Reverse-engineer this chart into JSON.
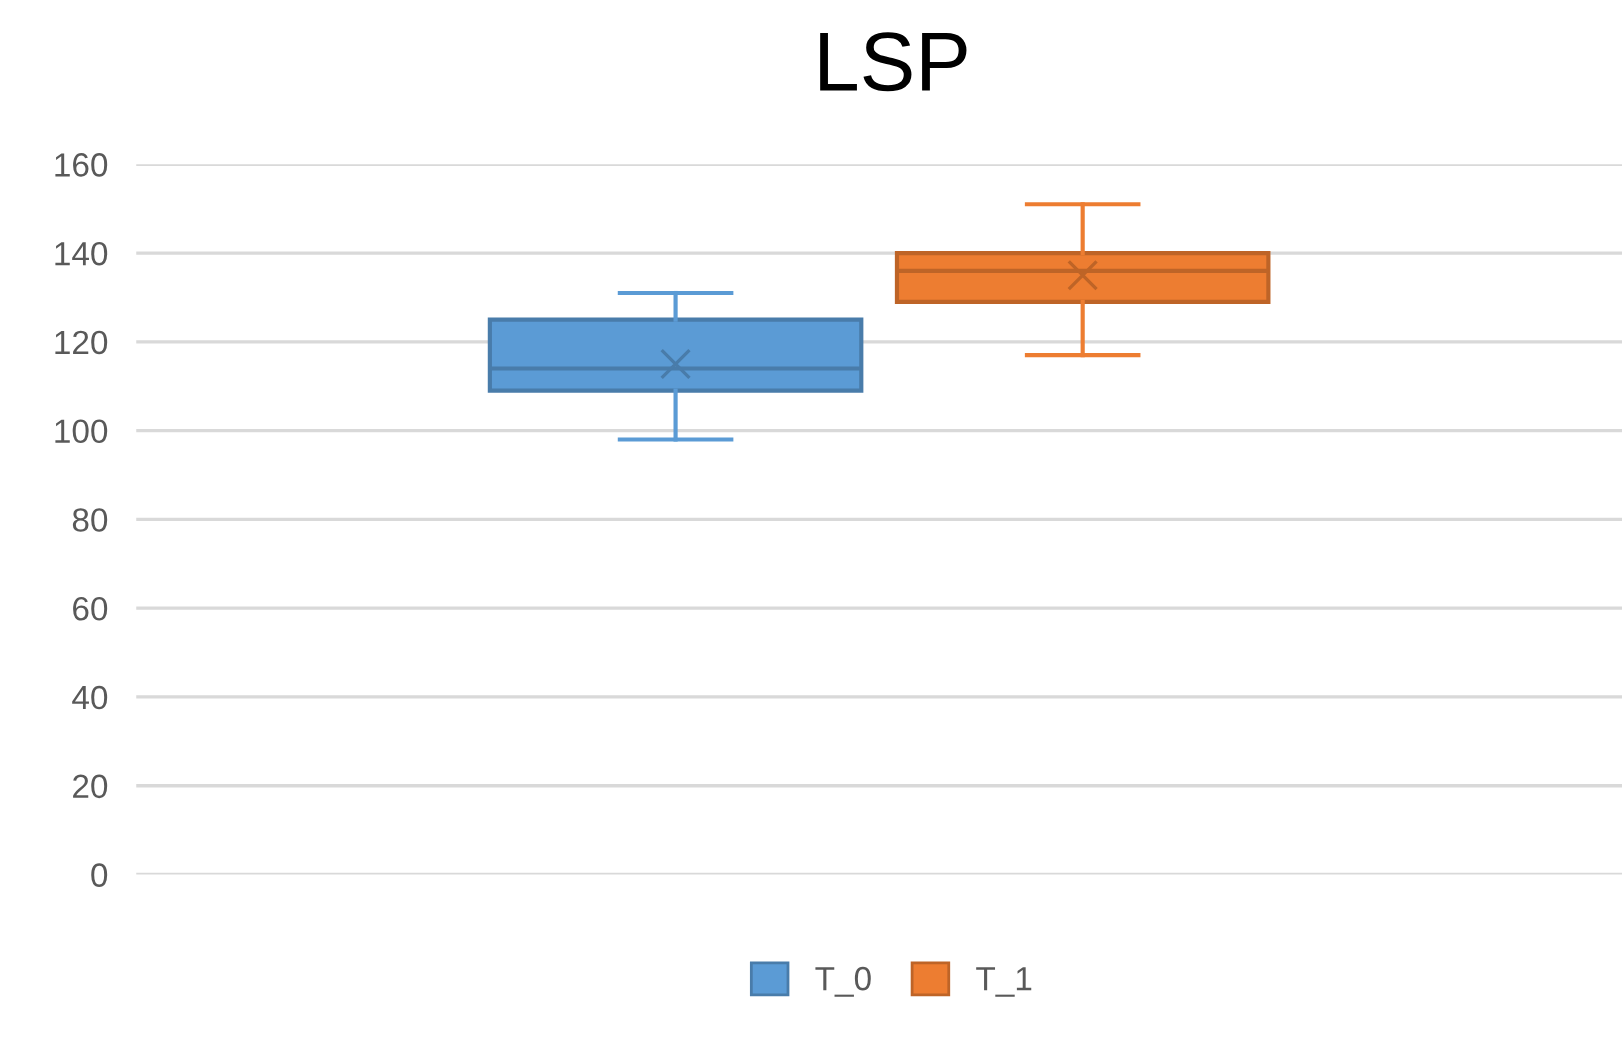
{
  "chart_data": {
    "type": "box",
    "title": "LSP",
    "categories": [
      null
    ],
    "series": [
      {
        "name": "T_0",
        "color": "#5b9bd5",
        "boxes": [
          {
            "low": 98,
            "q1": 109,
            "median": 114,
            "q3": 125,
            "high": 131,
            "mean": 115
          }
        ]
      },
      {
        "name": "T_1",
        "color": "#ed7d31",
        "boxes": [
          {
            "low": 117,
            "q1": 129,
            "median": 136,
            "q3": 140,
            "high": 151,
            "mean": 135
          }
        ]
      }
    ],
    "ylim": [
      0,
      160
    ],
    "yticks": [
      0,
      20,
      40,
      60,
      80,
      100,
      120,
      140,
      160
    ],
    "grid": "y",
    "legend": "bottom"
  }
}
